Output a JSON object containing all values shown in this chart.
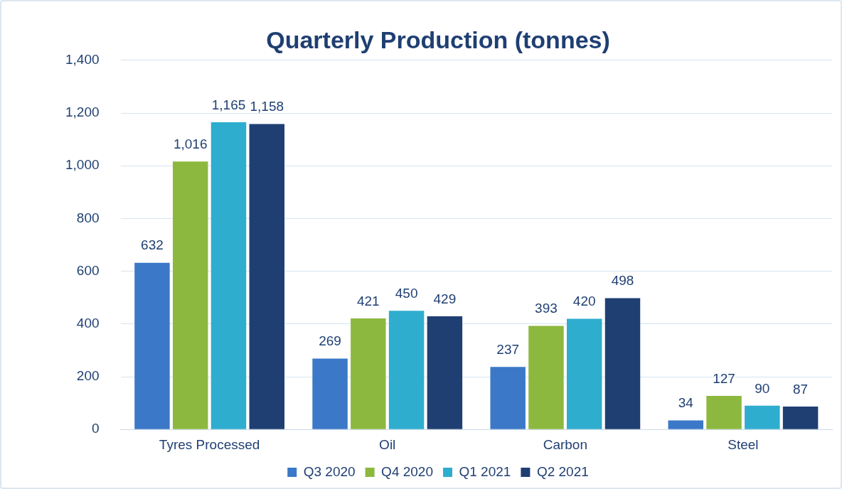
{
  "chart_data": {
    "type": "bar",
    "title": "Quarterly Production (tonnes)",
    "categories": [
      "Tyres Processed",
      "Oil",
      "Carbon",
      "Steel"
    ],
    "series": [
      {
        "name": "Q3 2020",
        "color": "#3b78c8",
        "values": [
          632,
          269,
          237,
          34
        ],
        "value_labels": [
          "632",
          "269",
          "237",
          "34"
        ]
      },
      {
        "name": "Q4 2020",
        "color": "#8db83f",
        "values": [
          1016,
          421,
          393,
          127
        ],
        "value_labels": [
          "1,016",
          "421",
          "393",
          "127"
        ]
      },
      {
        "name": "Q1 2021",
        "color": "#2fadcf",
        "values": [
          1165,
          450,
          420,
          90
        ],
        "value_labels": [
          "1,165",
          "450",
          "420",
          "90"
        ]
      },
      {
        "name": "Q2 2021",
        "color": "#1f3f72",
        "values": [
          1158,
          429,
          498,
          87
        ],
        "value_labels": [
          "1,158",
          "429",
          "498",
          "87"
        ]
      }
    ],
    "ylim": [
      0,
      1400
    ],
    "yticks": [
      0,
      200,
      400,
      600,
      800,
      {
        "value": 1000,
        "label": "1,000"
      },
      {
        "value": 1200,
        "label": "1,200"
      },
      {
        "value": 1400,
        "label": "1,400"
      }
    ],
    "grid": "y",
    "legend": "bottom"
  }
}
